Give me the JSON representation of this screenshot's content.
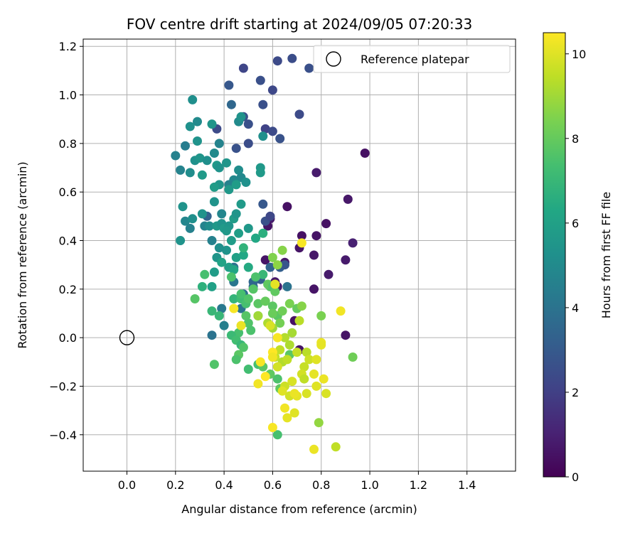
{
  "chart_data": {
    "type": "scatter",
    "title": "FOV centre drift starting at 2024/09/05 07:20:33",
    "xlabel": "Angular distance from reference (arcmin)",
    "ylabel": "Rotation from reference (arcmin)",
    "xlim": [
      -0.18,
      1.6
    ],
    "ylim": [
      -0.55,
      1.23
    ],
    "xticks": [
      "0.0",
      "0.2",
      "0.4",
      "0.6",
      "0.8",
      "1.0",
      "1.2",
      "1.4"
    ],
    "yticks": [
      "−0.4",
      "−0.2",
      "0.0",
      "0.2",
      "0.4",
      "0.6",
      "0.8",
      "1.0",
      "1.2"
    ],
    "grid": true,
    "legend": {
      "position": "top-right",
      "entries": [
        {
          "label": "Reference platepar",
          "marker": "hollow-circle",
          "x": 0.0,
          "y": 0.0
        }
      ]
    },
    "colorbar": {
      "label": "Hours from first FF file",
      "colormap": "viridis",
      "range": [
        0,
        10.5
      ],
      "ticks": [
        "0",
        "2",
        "4",
        "6",
        "8",
        "10"
      ]
    },
    "points_columns": [
      "x",
      "y",
      "hours"
    ],
    "points": [
      [
        0.98,
        0.76,
        0.5
      ],
      [
        0.91,
        0.57,
        0.7
      ],
      [
        0.93,
        0.39,
        1.0
      ],
      [
        0.9,
        0.32,
        0.8
      ],
      [
        0.9,
        0.01,
        0.6
      ],
      [
        0.82,
        0.47,
        0.5
      ],
      [
        0.78,
        0.42,
        0.6
      ],
      [
        0.77,
        0.34,
        0.7
      ],
      [
        0.83,
        0.26,
        0.8
      ],
      [
        0.77,
        0.2,
        0.6
      ],
      [
        0.78,
        0.68,
        0.8
      ],
      [
        0.72,
        0.42,
        0.5
      ],
      [
        0.71,
        0.37,
        0.6
      ],
      [
        0.66,
        0.54,
        0.5
      ],
      [
        0.65,
        0.31,
        0.7
      ],
      [
        0.62,
        0.21,
        0.8
      ],
      [
        0.61,
        0.23,
        0.7
      ],
      [
        0.57,
        0.32,
        0.6
      ],
      [
        0.59,
        0.49,
        0.8
      ],
      [
        0.58,
        0.46,
        0.6
      ],
      [
        0.71,
        -0.05,
        0.6
      ],
      [
        0.69,
        0.07,
        0.5
      ],
      [
        0.68,
        1.15,
        2.5
      ],
      [
        0.62,
        1.14,
        2.4
      ],
      [
        0.75,
        1.11,
        2.6
      ],
      [
        0.48,
        1.11,
        2.2
      ],
      [
        0.55,
        1.06,
        2.6
      ],
      [
        0.6,
        1.02,
        2.3
      ],
      [
        0.71,
        0.92,
        2.4
      ],
      [
        0.56,
        0.96,
        2.6
      ],
      [
        0.48,
        0.91,
        2.7
      ],
      [
        0.5,
        0.88,
        2.6
      ],
      [
        0.57,
        0.86,
        2.1
      ],
      [
        0.6,
        0.85,
        2.4
      ],
      [
        0.63,
        0.82,
        2.7
      ],
      [
        0.37,
        0.86,
        2.4
      ],
      [
        0.5,
        0.8,
        2.5
      ],
      [
        0.45,
        0.78,
        2.7
      ],
      [
        0.42,
        1.04,
        2.9
      ],
      [
        0.43,
        0.96,
        3.5
      ],
      [
        0.56,
        0.55,
        2.9
      ],
      [
        0.57,
        0.48,
        2.6
      ],
      [
        0.59,
        0.5,
        2.3
      ],
      [
        0.33,
        0.5,
        3.3
      ],
      [
        0.63,
        0.29,
        3.2
      ],
      [
        0.59,
        0.29,
        3.4
      ],
      [
        0.65,
        0.3,
        2.8
      ],
      [
        0.66,
        0.21,
        4.0
      ],
      [
        0.55,
        0.24,
        3.2
      ],
      [
        0.52,
        0.21,
        3.6
      ],
      [
        0.52,
        0.23,
        3.5
      ],
      [
        0.47,
        0.12,
        4.0
      ],
      [
        0.48,
        0.18,
        3.8
      ],
      [
        0.44,
        0.29,
        3.9
      ],
      [
        0.44,
        0.23,
        4.1
      ],
      [
        0.35,
        0.01,
        4.0
      ],
      [
        0.39,
        0.12,
        4.2
      ],
      [
        0.4,
        0.05,
        4.5
      ],
      [
        0.35,
        0.4,
        4.6
      ],
      [
        0.27,
        0.98,
        5.2
      ],
      [
        0.29,
        0.89,
        5.0
      ],
      [
        0.26,
        0.87,
        5.3
      ],
      [
        0.35,
        0.88,
        5.5
      ],
      [
        0.38,
        0.8,
        4.7
      ],
      [
        0.46,
        0.89,
        5.0
      ],
      [
        0.47,
        0.91,
        5.4
      ],
      [
        0.56,
        0.83,
        5.2
      ],
      [
        0.29,
        0.81,
        5.4
      ],
      [
        0.24,
        0.79,
        4.4
      ],
      [
        0.2,
        0.75,
        4.6
      ],
      [
        0.28,
        0.73,
        5.3
      ],
      [
        0.22,
        0.69,
        4.7
      ],
      [
        0.26,
        0.68,
        5.1
      ],
      [
        0.3,
        0.74,
        5.5
      ],
      [
        0.33,
        0.73,
        5.2
      ],
      [
        0.36,
        0.76,
        5.0
      ],
      [
        0.37,
        0.71,
        5.6
      ],
      [
        0.38,
        0.7,
        5.4
      ],
      [
        0.31,
        0.67,
        5.7
      ],
      [
        0.41,
        0.72,
        5.5
      ],
      [
        0.44,
        0.65,
        4.9
      ],
      [
        0.42,
        0.63,
        4.6
      ],
      [
        0.46,
        0.69,
        5.1
      ],
      [
        0.47,
        0.66,
        4.9
      ],
      [
        0.49,
        0.64,
        5.3
      ],
      [
        0.45,
        0.63,
        5.8
      ],
      [
        0.42,
        0.61,
        5.6
      ],
      [
        0.38,
        0.63,
        5.5
      ],
      [
        0.36,
        0.62,
        5.8
      ],
      [
        0.55,
        0.7,
        5.6
      ],
      [
        0.55,
        0.68,
        5.7
      ],
      [
        0.23,
        0.54,
        5.4
      ],
      [
        0.24,
        0.48,
        4.8
      ],
      [
        0.26,
        0.45,
        4.6
      ],
      [
        0.27,
        0.49,
        5.2
      ],
      [
        0.31,
        0.51,
        5.4
      ],
      [
        0.32,
        0.46,
        4.7
      ],
      [
        0.34,
        0.46,
        5.1
      ],
      [
        0.36,
        0.56,
        5.4
      ],
      [
        0.37,
        0.46,
        5.6
      ],
      [
        0.39,
        0.51,
        4.8
      ],
      [
        0.39,
        0.47,
        5.4
      ],
      [
        0.4,
        0.45,
        5.7
      ],
      [
        0.42,
        0.46,
        5.5
      ],
      [
        0.41,
        0.44,
        5.6
      ],
      [
        0.44,
        0.49,
        5.8
      ],
      [
        0.45,
        0.51,
        5.5
      ],
      [
        0.47,
        0.55,
        5.7
      ],
      [
        0.5,
        0.45,
        5.6
      ],
      [
        0.46,
        0.43,
        5.9
      ],
      [
        0.43,
        0.4,
        5.8
      ],
      [
        0.41,
        0.36,
        5.4
      ],
      [
        0.38,
        0.37,
        5.2
      ],
      [
        0.37,
        0.33,
        5.5
      ],
      [
        0.36,
        0.27,
        5.8
      ],
      [
        0.35,
        0.21,
        6.0
      ],
      [
        0.22,
        0.4,
        5.4
      ],
      [
        0.39,
        0.31,
        6.1
      ],
      [
        0.42,
        0.29,
        5.9
      ],
      [
        0.44,
        0.28,
        6.2
      ],
      [
        0.45,
        0.33,
        6.0
      ],
      [
        0.48,
        0.34,
        6.3
      ],
      [
        0.5,
        0.29,
        6.4
      ],
      [
        0.53,
        0.41,
        6.3
      ],
      [
        0.56,
        0.43,
        6.6
      ],
      [
        0.48,
        0.37,
        6.8
      ],
      [
        0.56,
        0.26,
        7.0
      ],
      [
        0.32,
        0.26,
        7.4
      ],
      [
        0.31,
        0.21,
        6.7
      ],
      [
        0.35,
        0.11,
        7.0
      ],
      [
        0.38,
        0.09,
        7.0
      ],
      [
        0.43,
        0.25,
        7.5
      ],
      [
        0.44,
        0.16,
        6.9
      ],
      [
        0.47,
        0.16,
        7.2
      ],
      [
        0.47,
        0.18,
        7.4
      ],
      [
        0.49,
        0.14,
        7.4
      ],
      [
        0.5,
        0.16,
        7.6
      ],
      [
        0.52,
        0.2,
        7.7
      ],
      [
        0.53,
        0.25,
        7.5
      ],
      [
        0.54,
        0.14,
        7.8
      ],
      [
        0.54,
        0.09,
        7.4
      ],
      [
        0.49,
        0.09,
        7.7
      ],
      [
        0.5,
        0.06,
        7.6
      ],
      [
        0.51,
        0.03,
        7.5
      ],
      [
        0.46,
        0.02,
        7.4
      ],
      [
        0.43,
        0.01,
        7.1
      ],
      [
        0.45,
        -0.01,
        7.3
      ],
      [
        0.47,
        -0.03,
        7.0
      ],
      [
        0.48,
        -0.04,
        7.6
      ],
      [
        0.46,
        -0.07,
        7.8
      ],
      [
        0.45,
        -0.09,
        7.5
      ],
      [
        0.5,
        -0.13,
        7.3
      ],
      [
        0.54,
        -0.11,
        7.4
      ],
      [
        0.56,
        -0.12,
        7.8
      ],
      [
        0.59,
        -0.15,
        7.9
      ],
      [
        0.62,
        -0.17,
        7.5
      ],
      [
        0.63,
        -0.21,
        7.9
      ],
      [
        0.62,
        -0.4,
        7.4
      ],
      [
        0.28,
        0.16,
        7.7
      ],
      [
        0.36,
        -0.11,
        7.6
      ],
      [
        0.62,
        0.09,
        7.8
      ],
      [
        0.67,
        -0.07,
        7.8
      ],
      [
        0.59,
        0.21,
        7.7
      ],
      [
        0.58,
        0.22,
        7.9
      ],
      [
        0.6,
        0.21,
        7.6
      ],
      [
        0.61,
        0.19,
        7.9
      ],
      [
        0.57,
        0.15,
        8.0
      ],
      [
        0.6,
        0.13,
        7.8
      ],
      [
        0.6,
        0.1,
        8.1
      ],
      [
        0.63,
        0.06,
        8.3
      ],
      [
        0.64,
        0.11,
        8.2
      ],
      [
        0.67,
        0.14,
        8.4
      ],
      [
        0.7,
        0.12,
        8.0
      ],
      [
        0.72,
        0.13,
        8.6
      ],
      [
        0.8,
        0.09,
        8.4
      ],
      [
        0.93,
        -0.08,
        8.2
      ],
      [
        0.79,
        -0.35,
        8.8
      ],
      [
        0.64,
        0.36,
        8.6
      ],
      [
        0.6,
        0.33,
        8.5
      ],
      [
        0.62,
        0.3,
        8.7
      ],
      [
        0.54,
        0.09,
        9.0
      ],
      [
        0.58,
        0.06,
        9.2
      ],
      [
        0.6,
        0.04,
        9.0
      ],
      [
        0.65,
        0.0,
        9.3
      ],
      [
        0.68,
        0.02,
        9.1
      ],
      [
        0.71,
        0.07,
        9.4
      ],
      [
        0.67,
        -0.03,
        9.2
      ],
      [
        0.63,
        -0.05,
        9.5
      ],
      [
        0.61,
        -0.08,
        9.6
      ],
      [
        0.64,
        -0.1,
        9.3
      ],
      [
        0.66,
        -0.09,
        9.5
      ],
      [
        0.7,
        -0.06,
        9.6
      ],
      [
        0.74,
        -0.06,
        9.4
      ],
      [
        0.75,
        -0.09,
        9.7
      ],
      [
        0.73,
        -0.12,
        9.6
      ],
      [
        0.72,
        -0.15,
        9.8
      ],
      [
        0.73,
        -0.17,
        9.5
      ],
      [
        0.68,
        -0.18,
        9.9
      ],
      [
        0.65,
        -0.2,
        9.7
      ],
      [
        0.64,
        -0.22,
        10.0
      ],
      [
        0.67,
        -0.24,
        9.8
      ],
      [
        0.7,
        -0.24,
        10.1
      ],
      [
        0.74,
        -0.23,
        9.9
      ],
      [
        0.78,
        -0.09,
        10.0
      ],
      [
        0.8,
        -0.02,
        10.2
      ],
      [
        0.8,
        -0.03,
        10.1
      ],
      [
        0.81,
        -0.17,
        10.2
      ],
      [
        0.82,
        -0.23,
        9.9
      ],
      [
        0.77,
        -0.15,
        10.1
      ],
      [
        0.78,
        -0.2,
        10.0
      ],
      [
        0.86,
        -0.45,
        9.5
      ],
      [
        0.77,
        -0.46,
        10.2
      ],
      [
        0.65,
        -0.29,
        10.3
      ],
      [
        0.66,
        -0.33,
        10.1
      ],
      [
        0.69,
        -0.31,
        10.0
      ],
      [
        0.6,
        -0.37,
        10.4
      ],
      [
        0.54,
        -0.19,
        10.3
      ],
      [
        0.57,
        -0.16,
        10.5
      ],
      [
        0.55,
        -0.1,
        10.4
      ],
      [
        0.6,
        -0.06,
        10.5
      ],
      [
        0.6,
        -0.08,
        10.3
      ],
      [
        0.62,
        0.0,
        10.4
      ],
      [
        0.47,
        0.05,
        10.2
      ],
      [
        0.44,
        0.12,
        10.4
      ],
      [
        0.72,
        0.39,
        10.4
      ],
      [
        0.88,
        0.11,
        10.3
      ],
      [
        0.61,
        0.22,
        10.1
      ],
      [
        0.62,
        -0.12,
        9.8
      ],
      [
        0.59,
        0.05,
        9.9
      ],
      [
        0.69,
        -0.23,
        10.2
      ]
    ]
  }
}
